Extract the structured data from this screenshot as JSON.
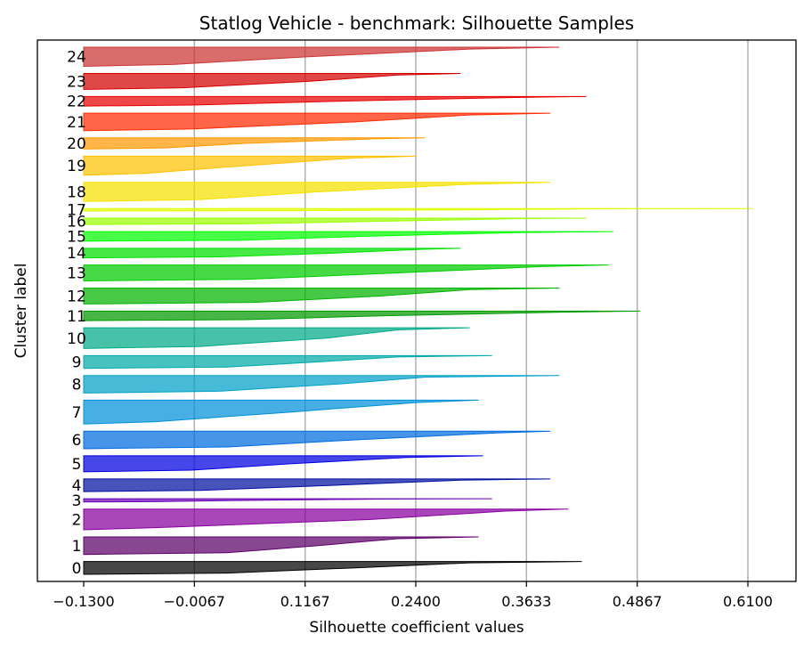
{
  "chart_data": {
    "type": "area",
    "title": "Statlog Vehicle - benchmark: Silhouette Samples",
    "xlabel": "Silhouette coefficient values",
    "ylabel": "Cluster label",
    "xlim": [
      -0.13,
      0.67
    ],
    "xticks": [
      "−0.1300",
      "−0.0067",
      "0.1167",
      "0.2400",
      "0.3633",
      "0.4867",
      "0.6100"
    ],
    "xtick_values": [
      -0.13,
      -0.0067,
      0.1167,
      0.24,
      0.3633,
      0.4867,
      0.61
    ],
    "grid": "vertical",
    "clusters": [
      {
        "label": "0",
        "color": "#000000",
        "size": 16,
        "max": 0.425,
        "p90": 0.3,
        "p50": 0.17,
        "p10": 0.03
      },
      {
        "label": "1",
        "color": "#5c0068",
        "size": 22,
        "max": 0.31,
        "p90": 0.22,
        "p50": 0.13,
        "p10": 0.03
      },
      {
        "label": "2",
        "color": "#8800a0",
        "size": 26,
        "max": 0.41,
        "p90": 0.34,
        "p50": 0.19,
        "p10": -0.05
      },
      {
        "label": "3",
        "color": "#6a00b8",
        "size": 4,
        "max": 0.325,
        "p90": 0.2,
        "p50": 0.05,
        "p10": -0.05
      },
      {
        "label": "4",
        "color": "#000fa0",
        "size": 16,
        "max": 0.39,
        "p90": 0.29,
        "p50": 0.15,
        "p10": 0.0
      },
      {
        "label": "5",
        "color": "#0000e0",
        "size": 20,
        "max": 0.315,
        "p90": 0.23,
        "p50": 0.1,
        "p10": -0.01
      },
      {
        "label": "6",
        "color": "#006ce0",
        "size": 22,
        "max": 0.39,
        "p90": 0.33,
        "p50": 0.17,
        "p10": 0.03
      },
      {
        "label": "7",
        "color": "#0090d8",
        "size": 30,
        "max": 0.31,
        "p90": 0.24,
        "p50": 0.1,
        "p10": -0.05
      },
      {
        "label": "8",
        "color": "#00a0c8",
        "size": 22,
        "max": 0.4,
        "p90": 0.25,
        "p50": 0.15,
        "p10": 0.02
      },
      {
        "label": "9",
        "color": "#00aaa8",
        "size": 16,
        "max": 0.325,
        "p90": 0.22,
        "p50": 0.13,
        "p10": 0.03
      },
      {
        "label": "10",
        "color": "#00aa88",
        "size": 26,
        "max": 0.3,
        "p90": 0.22,
        "p50": 0.14,
        "p10": 0.0
      },
      {
        "label": "11",
        "color": "#009a00",
        "size": 12,
        "max": 0.49,
        "p90": 0.41,
        "p50": 0.2,
        "p10": 0.05
      },
      {
        "label": "12",
        "color": "#00b400",
        "size": 20,
        "max": 0.4,
        "p90": 0.3,
        "p50": 0.2,
        "p10": 0.06
      },
      {
        "label": "13",
        "color": "#00cc00",
        "size": 20,
        "max": 0.455,
        "p90": 0.38,
        "p50": 0.22,
        "p10": 0.05
      },
      {
        "label": "14",
        "color": "#00e000",
        "size": 12,
        "max": 0.29,
        "p90": 0.25,
        "p50": 0.15,
        "p10": 0.02
      },
      {
        "label": "15",
        "color": "#00ff00",
        "size": 12,
        "max": 0.46,
        "p90": 0.35,
        "p50": 0.18,
        "p10": 0.05
      },
      {
        "label": "16",
        "color": "#99ff00",
        "size": 8,
        "max": 0.43,
        "p90": 0.35,
        "p50": 0.2,
        "p10": 0.05
      },
      {
        "label": "17",
        "color": "#dfff00",
        "size": 3,
        "max": 0.615,
        "p90": 0.45,
        "p50": 0.3,
        "p10": 0.1
      },
      {
        "label": "18",
        "color": "#f5e000",
        "size": 24,
        "max": 0.39,
        "p90": 0.3,
        "p50": 0.13,
        "p10": 0.0
      },
      {
        "label": "19",
        "color": "#ffc000",
        "size": 24,
        "max": 0.24,
        "p90": 0.17,
        "p50": 0.05,
        "p10": -0.06
      },
      {
        "label": "20",
        "color": "#ff9900",
        "size": 14,
        "max": 0.25,
        "p90": 0.19,
        "p50": 0.05,
        "p10": -0.04
      },
      {
        "label": "21",
        "color": "#ff2a00",
        "size": 22,
        "max": 0.39,
        "p90": 0.3,
        "p50": 0.17,
        "p10": -0.01
      },
      {
        "label": "22",
        "color": "#e60000",
        "size": 12,
        "max": 0.43,
        "p90": 0.35,
        "p50": 0.15,
        "p10": -0.01
      },
      {
        "label": "23",
        "color": "#d40000",
        "size": 20,
        "max": 0.29,
        "p90": 0.22,
        "p50": 0.12,
        "p10": -0.02
      },
      {
        "label": "24",
        "color": "#cc3333",
        "size": 24,
        "max": 0.4,
        "p90": 0.3,
        "p50": 0.12,
        "p10": -0.03
      }
    ]
  }
}
